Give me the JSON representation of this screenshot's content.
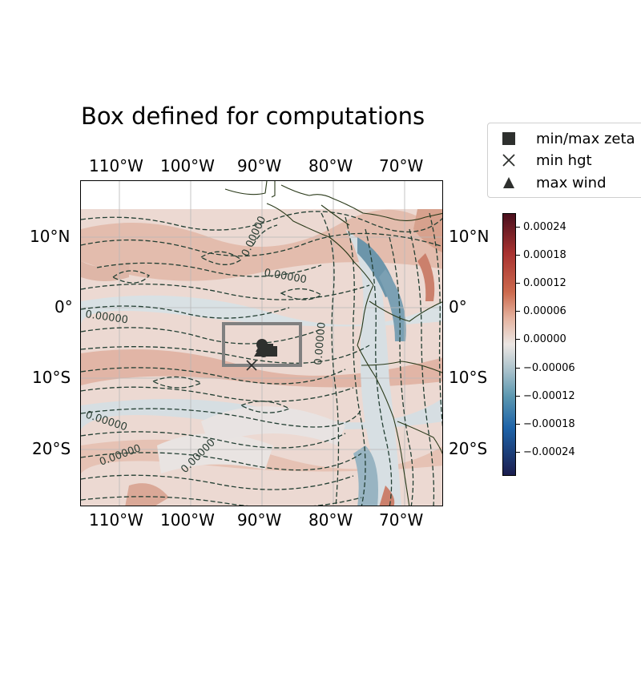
{
  "title": "Box defined for computations",
  "lon_labels": [
    "110°W",
    "100°W",
    "90°W",
    "80°W",
    "70°W"
  ],
  "lat_labels": [
    "10°N",
    "0°",
    "10°S",
    "20°S"
  ],
  "contour_label": "0.00000",
  "legend": {
    "items": [
      {
        "label": "min/max zeta",
        "icon": "square-marker-icon"
      },
      {
        "label": "min hgt",
        "icon": "x-marker-icon"
      },
      {
        "label": "max wind",
        "icon": "triangle-marker-icon"
      }
    ]
  },
  "colorbar": {
    "ticks": [
      "0.00024",
      "0.00018",
      "0.00012",
      "0.00006",
      "0.00000",
      "−0.00006",
      "−0.00012",
      "−0.00018",
      "−0.00024"
    ],
    "colors": [
      "#4a0f1d",
      "#a83230",
      "#cc6a4e",
      "#e5b3a0",
      "#ebe6e3",
      "#a8c1cb",
      "#5b97b0",
      "#1e63a8",
      "#1b1d4e"
    ]
  },
  "colors": {
    "marker": "#2e302e",
    "box": "#808080",
    "contour": "#233f33",
    "coast": "#2a3a1a"
  }
}
